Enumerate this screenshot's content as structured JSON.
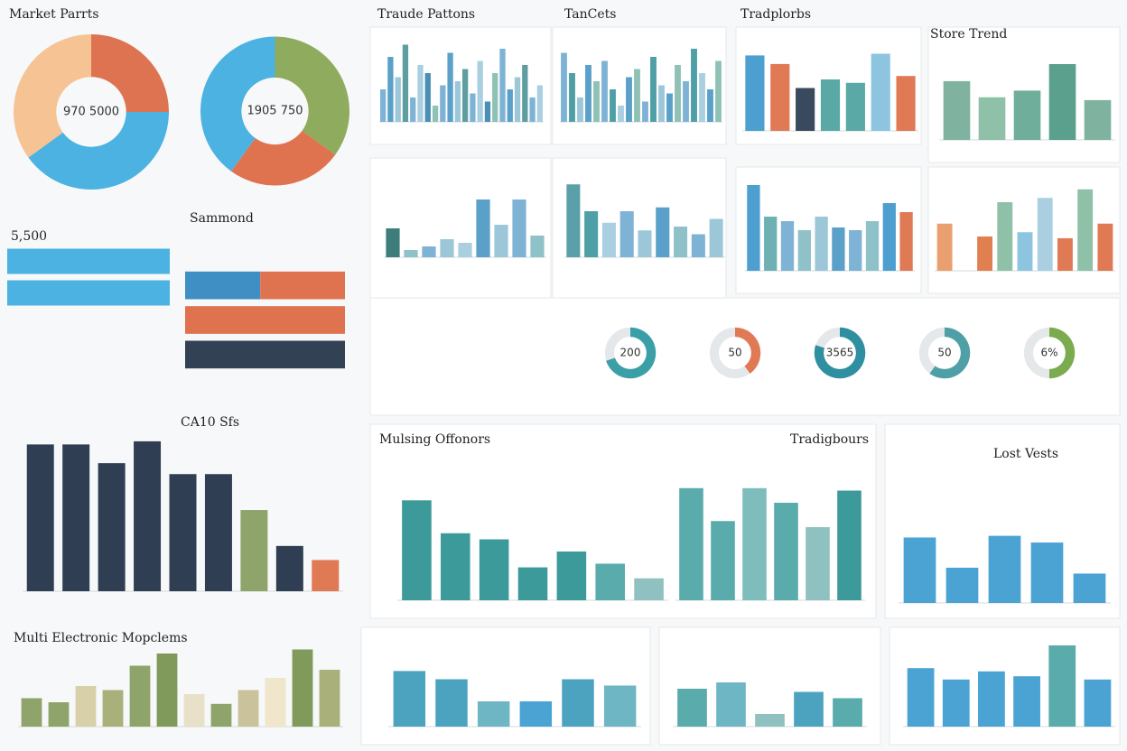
{
  "chart_data": [
    {
      "type": "donut",
      "title": "Market Parrts",
      "center": "970 5000",
      "values": [
        25,
        40,
        35
      ],
      "colors": [
        "#de7352",
        "#4bb2e2",
        "#f6c394"
      ]
    },
    {
      "type": "donut",
      "center": "1905 750",
      "values": [
        35,
        25,
        40
      ],
      "colors": [
        "#8fab5d",
        "#e0734f",
        "#4bb2e2"
      ]
    },
    {
      "type": "bar",
      "title": "Traude Pattons",
      "ylim": [
        0,
        100
      ],
      "values": [
        40,
        80,
        55,
        95,
        30,
        70,
        60,
        20,
        45,
        85,
        50,
        65,
        35,
        75,
        25,
        60,
        90,
        40,
        55,
        70,
        30,
        45
      ],
      "colors": [
        "#7fb3d5",
        "#5aa0c8",
        "#9cc7d9",
        "#5f9ea0",
        "#7fb3d5",
        "#a9cfe0",
        "#4a8fb5",
        "#8fc1b5",
        "#7fb3d5",
        "#5aa0c8",
        "#9cc7d9",
        "#5f9ea0",
        "#7fb3d5",
        "#a9cfe0",
        "#4a8fb5",
        "#8fc1b5",
        "#7fb3d5",
        "#5aa0c8",
        "#9cc7d9",
        "#5f9ea0",
        "#7fb3d5",
        "#a9cfe0"
      ]
    },
    {
      "type": "bar",
      "title": "TanCets",
      "ylim": [
        0,
        100
      ],
      "values": [
        85,
        60,
        30,
        70,
        50,
        75,
        40,
        20,
        55,
        65,
        25,
        80,
        45,
        35,
        70,
        50,
        90,
        60,
        40,
        75
      ],
      "colors": [
        "#7fb3d5",
        "#4f9fa6",
        "#9cc7d9",
        "#5aa0c8",
        "#8fc1b5",
        "#7fb3d5",
        "#4f9fa6",
        "#a9cfe0",
        "#5aa0c8",
        "#8fc1b5",
        "#7fb3d5",
        "#4f9fa6",
        "#9cc7d9",
        "#5aa0c8",
        "#8fc1b5",
        "#7fb3d5",
        "#4f9fa6",
        "#a9cfe0",
        "#5aa0c8",
        "#8fc1b5"
      ]
    },
    {
      "type": "bar",
      "title": "Tradplorbs",
      "ylim": [
        0,
        100
      ],
      "values": [
        88,
        78,
        50,
        60,
        56,
        90,
        64
      ],
      "colors": [
        "#4d9fd0",
        "#e07a55",
        "#3a4a5e",
        "#5aa9a6",
        "#5aa9a6",
        "#8dc5e0",
        "#e07a55"
      ]
    },
    {
      "type": "bar",
      "title": "Store Trend",
      "ylim": [
        0,
        100
      ],
      "values": [
        62,
        45,
        52,
        80,
        42
      ],
      "colors": [
        "#7fb3a0",
        "#8fc0a8",
        "#6fae9a",
        "#5aa08c",
        "#7fb3a0"
      ]
    },
    {
      "type": "bar",
      "ylim": [
        0,
        100
      ],
      "values": [
        40,
        10,
        15,
        25,
        20,
        80,
        45,
        80,
        30
      ],
      "colors": [
        "#3d7d7a",
        "#8fc1c8",
        "#7fb3d5",
        "#9cc7d9",
        "#a9cfe0",
        "#5aa0c8",
        "#9cc7d9",
        "#7fb3d5",
        "#8fc1c8"
      ]
    },
    {
      "type": "bar",
      "ylim": [
        0,
        100
      ],
      "values": [
        95,
        60,
        45,
        60,
        35,
        65,
        40,
        30,
        50
      ],
      "colors": [
        "#5aa0a8",
        "#4f9fa6",
        "#a9cfe0",
        "#7fb3d5",
        "#9cc7d9",
        "#5aa0c8",
        "#8fc1c8",
        "#7fb3d5",
        "#9cc7d9"
      ]
    },
    {
      "type": "bar",
      "ylim": [
        0,
        100
      ],
      "values": [
        95,
        60,
        55,
        45,
        60,
        48,
        45,
        55,
        75,
        65
      ],
      "colors": [
        "#4d9fd0",
        "#6fb0b5",
        "#7fb3d5",
        "#8fc1c8",
        "#9cc7d9",
        "#5aa0c8",
        "#7fb3d5",
        "#8fc1c8",
        "#4d9fd0",
        "#e07a55"
      ]
    },
    {
      "type": "bar",
      "ylim": [
        0,
        100
      ],
      "values": [
        55,
        0,
        40,
        80,
        45,
        85,
        38,
        95,
        55
      ],
      "colors": [
        "#e9a06e",
        "#e9a06e",
        "#e08050",
        "#8fc0a8",
        "#8dc5e0",
        "#a9cfe0",
        "#e07a55",
        "#8fc0a8",
        "#e07a55"
      ]
    },
    {
      "type": "hbar",
      "title": "5,500",
      "ylim": [
        0,
        100
      ],
      "series": [
        {
          "color": "#4bb2e2",
          "values": [
            100,
            100
          ]
        }
      ]
    },
    {
      "type": "hbar",
      "title": "Sammond",
      "ylim": [
        0,
        100
      ],
      "series": [
        {
          "color": "#3f8fc4",
          "values": [
            47,
            0,
            0
          ]
        },
        {
          "color": "#e0734f",
          "values": [
            53,
            100,
            0
          ]
        },
        {
          "color": "#334155",
          "values": [
            0,
            0,
            100
          ]
        }
      ]
    },
    {
      "type": "gauge",
      "values": [
        70,
        40,
        80,
        60,
        50
      ],
      "labels": [
        "200",
        "50",
        "3565",
        "50",
        "6%"
      ],
      "colors": [
        "#3a9fa6",
        "#e07a55",
        "#2f8fa0",
        "#4f9fa6",
        "#7aab4f"
      ]
    },
    {
      "type": "bar",
      "title": "CA10 Sfs",
      "ylim": [
        0,
        100
      ],
      "values": [
        94,
        94,
        82,
        96,
        75,
        75,
        52,
        29,
        20
      ],
      "colors": [
        "#2f3e52",
        "#2f3e52",
        "#2f3e52",
        "#2f3e52",
        "#2f3e52",
        "#2f3e52",
        "#8fa46a",
        "#2f3e52",
        "#e07a55"
      ]
    },
    {
      "type": "bar",
      "title": "Mulsing Offonors",
      "ylim": [
        0,
        100
      ],
      "values": [
        82,
        55,
        50,
        27,
        40,
        30,
        18
      ],
      "colors": [
        "#3d9a9a",
        "#3d9a9a",
        "#3d9a9a",
        "#3d9a9a",
        "#3d9a9a",
        "#5aabab",
        "#8fc1c1"
      ]
    },
    {
      "type": "bar",
      "title": "Tradigbours",
      "ylim": [
        0,
        100
      ],
      "values": [
        92,
        65,
        92,
        80,
        60,
        90
      ],
      "colors": [
        "#5aabab",
        "#5aabab",
        "#7fbdbd",
        "#5aabab",
        "#8fc1c1",
        "#3d9a9a"
      ]
    },
    {
      "type": "bar",
      "title": "Lost Vests",
      "ylim": [
        0,
        100
      ],
      "values": [
        78,
        42,
        80,
        72,
        35
      ],
      "colors": [
        "#4ba3d4",
        "#4ba3d4",
        "#4ba3d4",
        "#4ba3d4",
        "#4ba3d4"
      ]
    },
    {
      "type": "bar",
      "title": "Multi Electronic Mopclems",
      "ylim": [
        0,
        100
      ],
      "values": [
        35,
        30,
        50,
        45,
        75,
        90,
        40,
        28,
        45,
        60,
        95,
        70
      ],
      "colors": [
        "#8fa46a",
        "#8fa46a",
        "#d8d0a8",
        "#a9b07a",
        "#8fa46a",
        "#7f9a5a",
        "#e8e0c8",
        "#8fa46a",
        "#c9c29a",
        "#f0e6cc",
        "#7f9a5a",
        "#a9b07a"
      ]
    },
    {
      "type": "bar",
      "ylim": [
        0,
        100
      ],
      "values": [
        88,
        75,
        40,
        40,
        75,
        65
      ],
      "colors": [
        "#4ba3c0",
        "#4ba3c0",
        "#6fb6c4",
        "#4ba3d4",
        "#4ba3c0",
        "#6fb6c4"
      ]
    },
    {
      "type": "bar",
      "ylim": [
        0,
        100
      ],
      "values": [
        60,
        70,
        20,
        55,
        45
      ],
      "colors": [
        "#5aabab",
        "#6fb6c4",
        "#8fc1c1",
        "#4ba3c0",
        "#5aabab"
      ]
    },
    {
      "type": "bar",
      "ylim": [
        0,
        100
      ],
      "values": [
        72,
        58,
        68,
        62,
        100,
        58
      ],
      "colors": [
        "#4ba3d4",
        "#4ba3d4",
        "#4ba3d4",
        "#4ba3d4",
        "#5aabab",
        "#4ba3d4"
      ]
    }
  ]
}
